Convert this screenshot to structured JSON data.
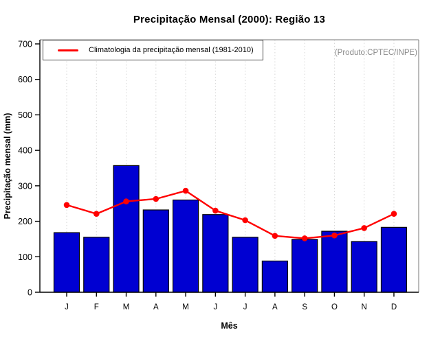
{
  "chart_data": {
    "type": "bar",
    "title": "Precipitação Mensal (2000): Região 13",
    "xlabel": "Mês",
    "ylabel": "Precipitação mensal (mm)",
    "categories": [
      "J",
      "F",
      "M",
      "A",
      "M",
      "J",
      "J",
      "A",
      "S",
      "O",
      "N",
      "D"
    ],
    "series": [
      {
        "name": "Precipitação Mensal (2000)",
        "type": "bar",
        "color": "#0000d2",
        "values": [
          168,
          155,
          357,
          232,
          260,
          219,
          155,
          88,
          149,
          172,
          143,
          183
        ]
      },
      {
        "name": "Climatologia da precipitação mensal (1981-2010)",
        "type": "line",
        "color": "#ff0000",
        "values": [
          246,
          221,
          256,
          263,
          286,
          230,
          203,
          159,
          152,
          160,
          181,
          221
        ]
      }
    ],
    "ylim": [
      0,
      700
    ],
    "ytick_step": 100,
    "grid": "vertical-dotted",
    "legend_position": "top-left",
    "annotation": "(Produto:CPTEC/INPE)"
  },
  "style": {
    "bar_border": "#000000",
    "axis_color": "#000000",
    "box_color": "#777777",
    "grid_color": "#d6d6d6",
    "tick_label_color": "#000000"
  }
}
